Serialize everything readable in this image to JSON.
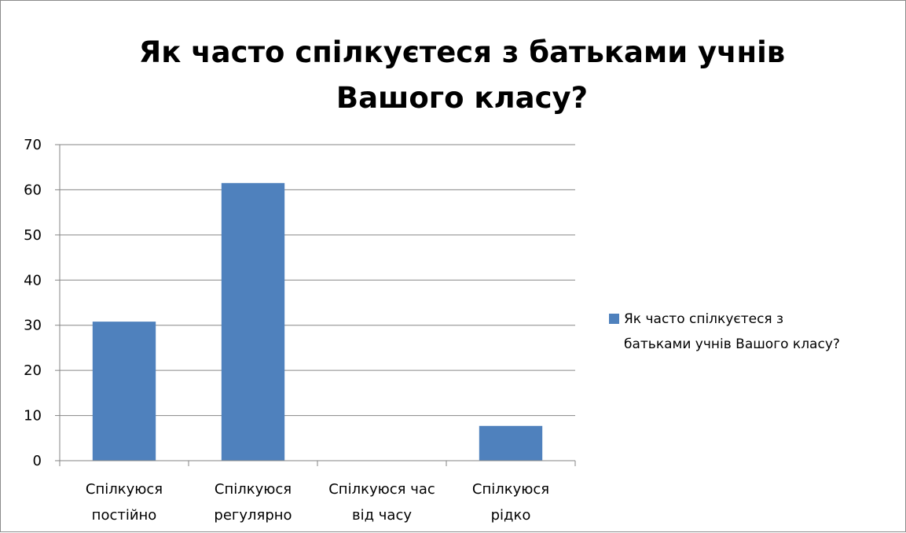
{
  "chart_data": {
    "type": "bar",
    "title_lines": [
      "Як часто спілкуєтеся з батьками учнів",
      "Вашого класу?"
    ],
    "categories": [
      [
        "Спілкуюся",
        "постійно"
      ],
      [
        "Спілкуюся",
        "регулярно"
      ],
      [
        "Спілкуюся час",
        "від часу"
      ],
      [
        "Спілкуюся",
        "рідко"
      ]
    ],
    "series": [
      {
        "name_lines": [
          "Як часто спілкуєтеся з",
          "батьками учнів Вашого класу?"
        ],
        "values": [
          30.8,
          61.5,
          0,
          7.7
        ],
        "color": "#4f81bd"
      }
    ],
    "ylim": [
      0,
      70
    ],
    "yticks": [
      "0",
      "10",
      "20",
      "30",
      "40",
      "50",
      "60",
      "70"
    ],
    "grid": true,
    "legend": "right"
  }
}
